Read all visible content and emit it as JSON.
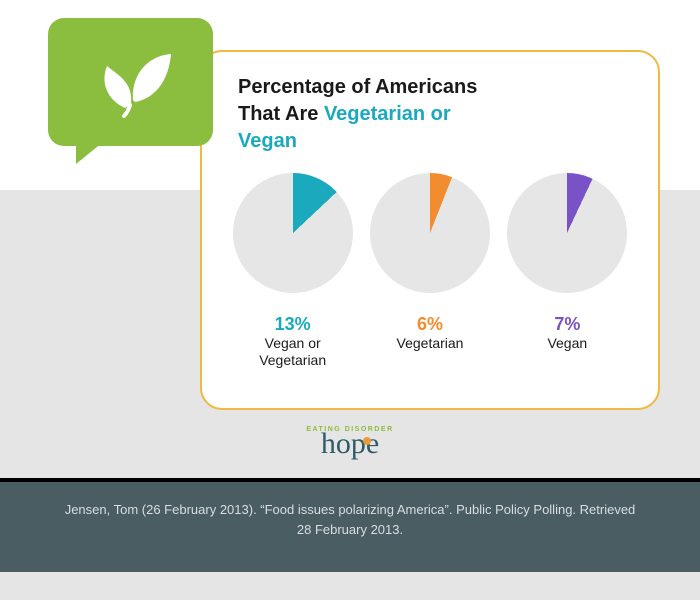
{
  "colors": {
    "card_border": "#f0b93f",
    "title_text": "#1a1a1a",
    "title_accent": "#1aa9bd",
    "pie_bg": "#e6e6e6",
    "badge_bg": "#8bbd3f",
    "badge_leaf": "#ffffff",
    "logo_text": "#2f5a67",
    "logo_top": "#8bbd3f",
    "logo_dot": "#e89b3a",
    "cite_bg": "#4a5d63",
    "cite_text": "#d8dde0"
  },
  "title": {
    "line1": "Percentage of Americans",
    "line2a": "That Are ",
    "line2b": "Vegetarian or",
    "line3": "Vegan"
  },
  "pies": [
    {
      "percent": 13,
      "percent_label": "13%",
      "label": "Vegan or\nVegetarian",
      "slice_color": "#1aa9bd",
      "start_angle": 0
    },
    {
      "percent": 6,
      "percent_label": "6%",
      "label": "Vegetarian",
      "slice_color": "#f28c2e",
      "start_angle": 0
    },
    {
      "percent": 7,
      "percent_label": "7%",
      "label": "Vegan",
      "slice_color": "#7a52c7",
      "start_angle": 0
    }
  ],
  "logo": {
    "top": "EATING DISORDER",
    "main": "hope"
  },
  "citation": "Jensen, Tom (26 February 2013). “Food issues polarizing America”. Public Policy Polling. Retrieved 28 February 2013."
}
